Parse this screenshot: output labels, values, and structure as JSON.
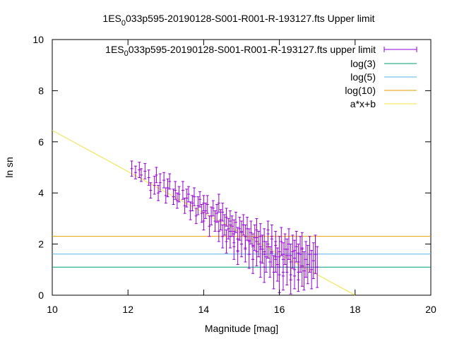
{
  "chart_data": {
    "type": "scatter",
    "title": {
      "prefix": "1ES",
      "sub": "0",
      "suffix": "033p595-20190128-S001-R001-R-193127.fts Upper limit"
    },
    "xlabel": "Magnitude [mag]",
    "ylabel": "ln sn",
    "xlim": [
      10,
      20
    ],
    "ylim": [
      0,
      10
    ],
    "xticks": [
      "10",
      "12",
      "14",
      "16",
      "18",
      "20"
    ],
    "yticks": [
      "0",
      "2",
      "4",
      "6",
      "8",
      "10"
    ],
    "grid": false,
    "legend_position": "top-right",
    "series": [
      {
        "name_prefix": "1ES",
        "name_sub": "0",
        "name_suffix": "033p595-20190128-S001-R001-R-193127.fts upper limit",
        "kind": "errorbars",
        "color": "#9400d3"
      },
      {
        "name": "log(3)",
        "kind": "hline",
        "y": 1.0986,
        "color": "#009e73"
      },
      {
        "name": "log(5)",
        "kind": "hline",
        "y": 1.6094,
        "color": "#56b4e9"
      },
      {
        "name": "log(10)",
        "kind": "hline",
        "y": 2.3026,
        "color": "#e69f00"
      },
      {
        "name": "a*x+b",
        "kind": "fit",
        "x": [
          10,
          18
        ],
        "y": [
          6.45,
          0.0
        ],
        "color": "#f0e442"
      }
    ],
    "points": [
      [
        12.1,
        4.95,
        0.3
      ],
      [
        12.2,
        4.8,
        0.25
      ],
      [
        12.3,
        4.9,
        0.3
      ],
      [
        12.35,
        4.7,
        0.25
      ],
      [
        12.45,
        4.85,
        0.3
      ],
      [
        12.55,
        4.6,
        0.3
      ],
      [
        12.6,
        4.1,
        0.3
      ],
      [
        12.7,
        4.3,
        0.35
      ],
      [
        12.75,
        4.7,
        0.3
      ],
      [
        12.8,
        4.0,
        0.3
      ],
      [
        12.85,
        4.4,
        0.35
      ],
      [
        12.95,
        4.5,
        0.3
      ],
      [
        13.0,
        3.9,
        0.3
      ],
      [
        13.05,
        4.2,
        0.35
      ],
      [
        13.1,
        4.45,
        0.3
      ],
      [
        13.2,
        3.85,
        0.3
      ],
      [
        13.25,
        4.1,
        0.35
      ],
      [
        13.3,
        3.7,
        0.3
      ],
      [
        13.35,
        3.95,
        0.3
      ],
      [
        13.45,
        4.1,
        0.35
      ],
      [
        13.5,
        3.5,
        0.3
      ],
      [
        13.55,
        3.8,
        0.35
      ],
      [
        13.6,
        3.95,
        0.3
      ],
      [
        13.65,
        3.3,
        0.35
      ],
      [
        13.7,
        3.6,
        0.3
      ],
      [
        13.75,
        3.85,
        0.35
      ],
      [
        13.8,
        3.1,
        0.3
      ],
      [
        13.85,
        3.5,
        0.35
      ],
      [
        13.9,
        3.75,
        0.3
      ],
      [
        13.95,
        3.2,
        0.35
      ],
      [
        14.0,
        3.6,
        0.3
      ],
      [
        14.0,
        2.9,
        0.35
      ],
      [
        14.05,
        3.3,
        0.3
      ],
      [
        14.1,
        3.55,
        0.35
      ],
      [
        14.15,
        2.7,
        0.4
      ],
      [
        14.2,
        3.1,
        0.35
      ],
      [
        14.25,
        3.4,
        0.3
      ],
      [
        14.3,
        2.9,
        0.4
      ],
      [
        14.35,
        3.2,
        0.35
      ],
      [
        14.4,
        2.5,
        0.4
      ],
      [
        14.4,
        3.6,
        0.35
      ],
      [
        14.45,
        2.95,
        0.4
      ],
      [
        14.5,
        3.25,
        0.35
      ],
      [
        14.5,
        2.3,
        0.45
      ],
      [
        14.55,
        2.75,
        0.4
      ],
      [
        14.6,
        3.05,
        0.35
      ],
      [
        14.6,
        2.1,
        0.45
      ],
      [
        14.65,
        2.6,
        0.4
      ],
      [
        14.7,
        2.9,
        0.4
      ],
      [
        14.7,
        2.3,
        0.45
      ],
      [
        14.75,
        2.7,
        0.4
      ],
      [
        14.8,
        1.9,
        0.5
      ],
      [
        14.8,
        2.5,
        0.45
      ],
      [
        14.85,
        2.85,
        0.4
      ],
      [
        14.9,
        2.2,
        0.45
      ],
      [
        14.9,
        1.7,
        0.5
      ],
      [
        14.95,
        2.6,
        0.45
      ],
      [
        15.0,
        2.0,
        0.5
      ],
      [
        15.0,
        2.45,
        0.45
      ],
      [
        15.05,
        2.75,
        0.4
      ],
      [
        15.1,
        1.8,
        0.5
      ],
      [
        15.1,
        2.3,
        0.45
      ],
      [
        15.15,
        2.6,
        0.45
      ],
      [
        15.2,
        1.6,
        0.55
      ],
      [
        15.2,
        2.1,
        0.5
      ],
      [
        15.25,
        2.45,
        0.45
      ],
      [
        15.3,
        1.9,
        0.5
      ],
      [
        15.3,
        1.4,
        0.55
      ],
      [
        15.35,
        2.25,
        0.5
      ],
      [
        15.4,
        2.55,
        0.45
      ],
      [
        15.4,
        1.7,
        0.55
      ],
      [
        15.45,
        2.0,
        0.5
      ],
      [
        15.5,
        1.3,
        0.6
      ],
      [
        15.5,
        2.3,
        0.5
      ],
      [
        15.55,
        1.8,
        0.55
      ],
      [
        15.6,
        2.1,
        0.5
      ],
      [
        15.6,
        1.1,
        0.6
      ],
      [
        15.65,
        1.5,
        0.6
      ],
      [
        15.7,
        2.0,
        0.55
      ],
      [
        15.7,
        2.4,
        0.5
      ],
      [
        15.75,
        1.3,
        0.6
      ],
      [
        15.8,
        1.7,
        0.6
      ],
      [
        15.8,
        2.2,
        0.55
      ],
      [
        15.85,
        0.9,
        0.65
      ],
      [
        15.9,
        1.5,
        0.6
      ],
      [
        15.9,
        1.95,
        0.55
      ],
      [
        15.95,
        1.2,
        0.65
      ],
      [
        16.0,
        1.7,
        0.6
      ],
      [
        16.0,
        0.8,
        0.7
      ],
      [
        16.05,
        2.1,
        0.55
      ],
      [
        16.1,
        1.4,
        0.65
      ],
      [
        16.1,
        0.9,
        0.7
      ],
      [
        16.15,
        1.8,
        0.6
      ],
      [
        16.2,
        1.1,
        0.7
      ],
      [
        16.2,
        1.55,
        0.65
      ],
      [
        16.25,
        2.0,
        0.6
      ],
      [
        16.3,
        0.8,
        0.75
      ],
      [
        16.3,
        1.3,
        0.7
      ],
      [
        16.35,
        1.7,
        0.65
      ],
      [
        16.4,
        1.0,
        0.75
      ],
      [
        16.4,
        1.45,
        0.7
      ],
      [
        16.45,
        1.9,
        0.6
      ],
      [
        16.5,
        0.9,
        0.75
      ],
      [
        16.5,
        1.3,
        0.7
      ],
      [
        16.55,
        1.6,
        0.7
      ],
      [
        16.6,
        1.1,
        0.75
      ],
      [
        16.6,
        1.8,
        0.65
      ],
      [
        16.65,
        0.95,
        0.75
      ],
      [
        16.7,
        1.4,
        0.7
      ],
      [
        16.75,
        1.2,
        0.75
      ],
      [
        16.8,
        1.6,
        0.7
      ],
      [
        16.85,
        1.0,
        0.75
      ],
      [
        16.9,
        1.35,
        0.7
      ],
      [
        16.95,
        1.6,
        0.75
      ],
      [
        17.0,
        1.1,
        0.8
      ]
    ]
  }
}
